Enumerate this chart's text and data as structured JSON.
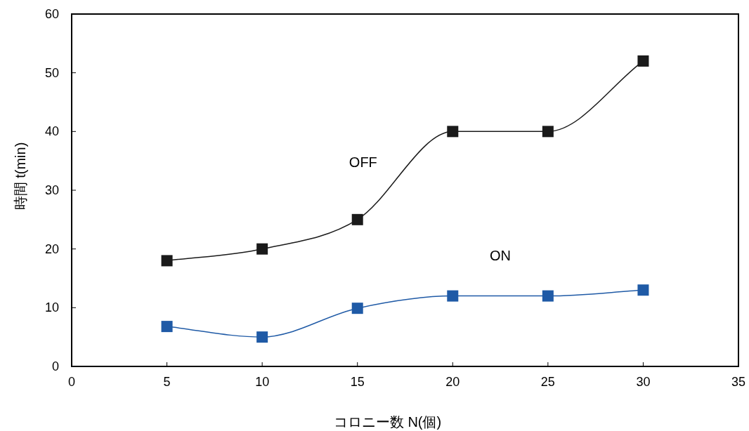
{
  "chart_data": {
    "type": "line",
    "xlabel": "コロニー数 N(個)",
    "ylabel": "時間 t(min)",
    "x": [
      5,
      10,
      15,
      20,
      25,
      30
    ],
    "series": [
      {
        "name": "OFF",
        "color": "#1a1a1a",
        "marker": "square",
        "values": [
          18,
          20,
          25,
          40,
          40,
          52
        ]
      },
      {
        "name": "ON",
        "color": "#1f5aa6",
        "marker": "square",
        "values": [
          6.8,
          5,
          9.9,
          12,
          12,
          13
        ]
      }
    ],
    "xlim": [
      0,
      35
    ],
    "xticks": [
      0,
      5,
      10,
      15,
      20,
      25,
      30,
      35
    ],
    "ylim": [
      0,
      60
    ],
    "yticks": [
      0,
      10,
      20,
      30,
      40,
      50,
      60
    ],
    "grid": false,
    "line_style": "solid"
  }
}
